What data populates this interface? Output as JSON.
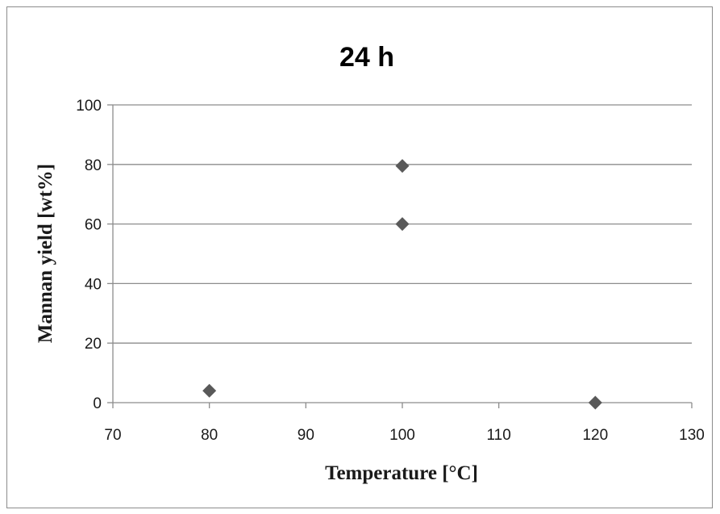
{
  "chart_data": {
    "type": "scatter",
    "title": "24 h",
    "xlabel": "Temperature [°C]",
    "ylabel": "Mannan yield [wt%]",
    "xlim": [
      70,
      130
    ],
    "ylim": [
      0,
      100
    ],
    "x_ticks": [
      70,
      80,
      90,
      100,
      110,
      120,
      130
    ],
    "y_ticks": [
      0,
      20,
      40,
      60,
      80,
      100
    ],
    "grid": "horizontal",
    "legend": "none",
    "series": [
      {
        "x": [
          80,
          100,
          100,
          120
        ],
        "y": [
          4,
          60,
          79.5,
          0
        ],
        "marker": "diamond",
        "color": "#595959"
      }
    ],
    "colors": {
      "gridline": "#8c8c8c",
      "axis": "#8c8c8c",
      "marker": "#595959"
    }
  }
}
